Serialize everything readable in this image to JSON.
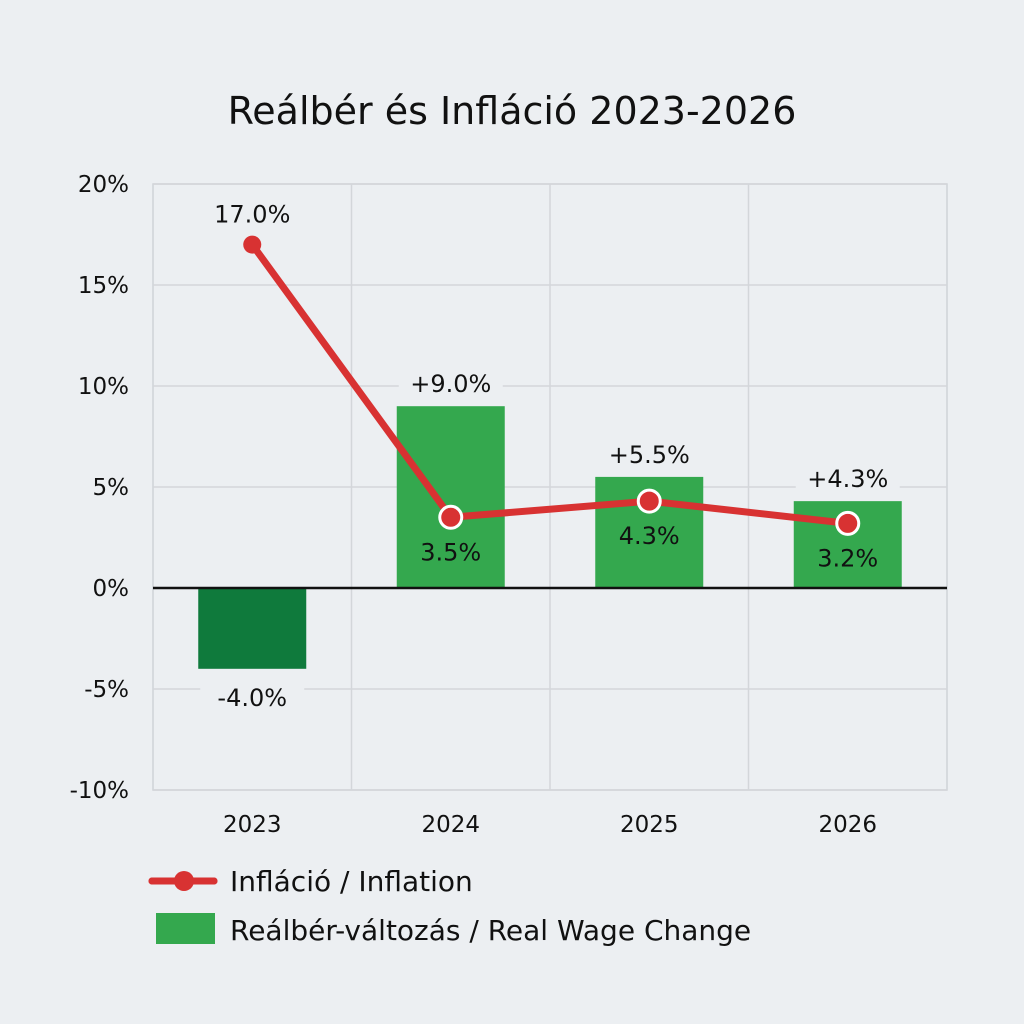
{
  "chart_data": {
    "type": "bar+line",
    "title": "Reálbér és Infláció 2023-2026",
    "categories": [
      "2023",
      "2024",
      "2025",
      "2026"
    ],
    "ylim": [
      -10,
      20
    ],
    "yticks": [
      20,
      15,
      10,
      5,
      0,
      -5,
      -10
    ],
    "ytick_labels": [
      "20%",
      "15%",
      "10%",
      "5%",
      "0%",
      "-5%",
      "-10%"
    ],
    "grid": true,
    "series": [
      {
        "name": "Reálbér-változás / Real Wage Change",
        "type": "bar",
        "values": [
          -4.0,
          9.0,
          5.5,
          4.3
        ],
        "labels": [
          "-4.0%",
          "+9.0%",
          "+5.5%",
          "+4.3%"
        ],
        "color": "#34a84e",
        "negative_color": "#0f7a3c"
      },
      {
        "name": "Infláció / Inflation",
        "type": "line",
        "values": [
          17.0,
          3.5,
          4.3,
          3.2
        ],
        "labels": [
          "17.0%",
          "3.5%",
          "4.3%",
          "3.2%"
        ],
        "color": "#d83232"
      }
    ],
    "legend_position": "bottom-left"
  }
}
